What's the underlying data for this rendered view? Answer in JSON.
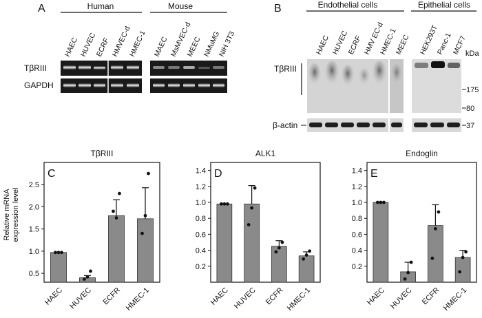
{
  "panels": {
    "A": {
      "letter": "A",
      "group_human": "Human",
      "group_mouse": "Mouse",
      "human_lanes": [
        "HAEC",
        "HUVEC",
        "ECRF",
        "HMVEC-d",
        "HMEC-1"
      ],
      "mouse_lanes": [
        "MAEC",
        "MsMVEC-d",
        "MEEC",
        "NMuMG",
        "NIH 3T3"
      ],
      "row_labels": [
        "TβRIII",
        "GAPDH"
      ]
    },
    "B": {
      "letter": "B",
      "group_endothelial": "Endothelial cells",
      "group_epithelial": "Epithelial cells",
      "endo_lanes": [
        "HAEC",
        "HUVEC",
        "ECRF",
        "HMV EC-d",
        "HMEC-1",
        "MEEC"
      ],
      "epi_lanes": [
        "HEK293T",
        "Panc-1",
        "MCF7"
      ],
      "kda_label": "kDa",
      "row_label_top": "TβRIII",
      "row_label_bottom": "β-actin",
      "markers": [
        "175",
        "80",
        "37"
      ]
    }
  },
  "y_axis_title": [
    "Relative mRNA",
    "expression level"
  ],
  "chart_data": [
    {
      "type": "bar",
      "panel": "C",
      "title": "TβRIII",
      "categories": [
        "HAEC",
        "HUVEC",
        "ECFR",
        "HMEC-1"
      ],
      "values": [
        0.97,
        0.4,
        1.8,
        1.73
      ],
      "errors": [
        0.0,
        0.05,
        0.36,
        0.7
      ],
      "points": [
        [
          0.97,
          0.97,
          0.97
        ],
        [
          0.37,
          0.42,
          0.55
        ],
        [
          1.9,
          1.75,
          2.3
        ],
        [
          1.4,
          1.8,
          2.75
        ]
      ],
      "ylim": [
        0.3,
        3.0
      ],
      "yticks": [
        0.5,
        1.0,
        1.5,
        2.0,
        2.5
      ],
      "ytick_labels": [
        "0.5",
        "1.0",
        "1.5",
        "2.0",
        "2.5"
      ]
    },
    {
      "type": "bar",
      "panel": "D",
      "title": "ALK1",
      "categories": [
        "HAEC",
        "HUVEC",
        "ECFR",
        "HMEC-1"
      ],
      "values": [
        0.98,
        0.98,
        0.45,
        0.33
      ],
      "errors": [
        0.0,
        0.23,
        0.07,
        0.05
      ],
      "points": [
        [
          0.98,
          0.98,
          0.98
        ],
        [
          0.72,
          0.93,
          1.18
        ],
        [
          0.38,
          0.43,
          0.5
        ],
        [
          0.29,
          0.34,
          0.39
        ]
      ],
      "ylim": [
        0.0,
        1.5
      ],
      "yticks": [
        0.2,
        0.4,
        0.6,
        0.8,
        1.0,
        1.2,
        1.4
      ],
      "ytick_labels": [
        "0.2",
        "0.4",
        "0.6",
        "0.8",
        "1.0",
        "1.2",
        "1.4"
      ]
    },
    {
      "type": "bar",
      "panel": "E",
      "title": "Endoglin",
      "categories": [
        "HAEC",
        "HUVEC",
        "ECFR",
        "HMEC-1"
      ],
      "values": [
        1.0,
        0.13,
        0.71,
        0.31
      ],
      "errors": [
        0.0,
        0.12,
        0.26,
        0.09
      ],
      "points": [
        [
          1.0,
          1.0,
          1.0
        ],
        [
          0.04,
          0.12,
          0.25
        ],
        [
          0.3,
          0.67,
          0.88
        ],
        [
          0.13,
          0.31,
          0.38
        ]
      ],
      "ylim": [
        0.0,
        1.5
      ],
      "yticks": [
        0.2,
        0.4,
        0.6,
        0.8,
        1.0,
        1.2,
        1.4
      ],
      "ytick_labels": [
        "0.2",
        "0.4",
        "0.6",
        "0.8",
        "1.0",
        "1.2",
        "1.4"
      ]
    }
  ]
}
